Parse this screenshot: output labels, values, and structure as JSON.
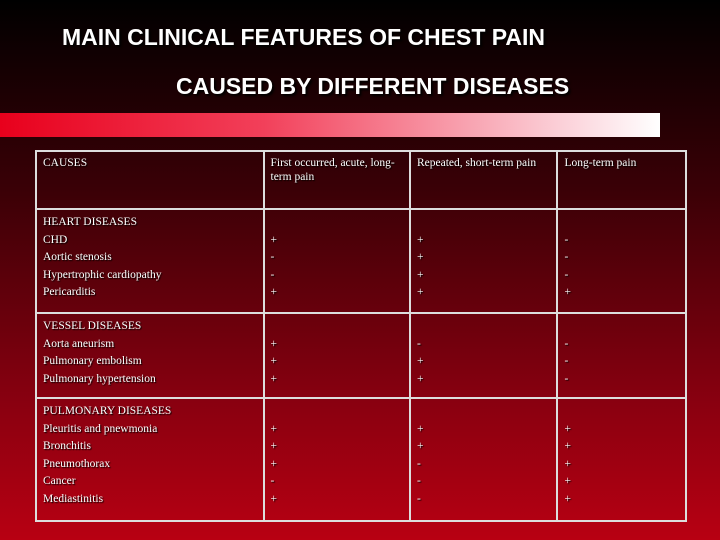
{
  "title": {
    "line1": "MAIN CLINICAL FEATURES OF CHEST PAIN",
    "line2": "CAUSED BY DIFFERENT DISEASES"
  },
  "table": {
    "header": [
      "CAUSES",
      "First occurred, acute, long-term pain",
      "Repeated, short-term pain",
      "Long-term pain"
    ],
    "groups": [
      {
        "title": "HEART DISEASES",
        "rows": [
          {
            "name": "CHD",
            "values": [
              "+",
              "+",
              "-"
            ]
          },
          {
            "name": "Aortic stenosis",
            "values": [
              "-",
              "+",
              "-"
            ]
          },
          {
            "name": "Hypertrophic cardiopathy",
            "values": [
              "-",
              "+",
              "-"
            ]
          },
          {
            "name": "Pericarditis",
            "values": [
              "+",
              "+",
              "+"
            ]
          }
        ]
      },
      {
        "title": "VESSEL DISEASES",
        "rows": [
          {
            "name": "Aorta aneurism",
            "values": [
              "+",
              "-",
              "-"
            ]
          },
          {
            "name": "Pulmonary embolism",
            "values": [
              "+",
              "+",
              "-"
            ]
          },
          {
            "name": "Pulmonary hypertension",
            "values": [
              "+",
              "+",
              "-"
            ]
          }
        ]
      },
      {
        "title": "PULMONARY DISEASES",
        "rows": [
          {
            "name": "Pleuritis and pnewmonia",
            "values": [
              "+",
              "+",
              "+"
            ]
          },
          {
            "name": "Bronchitis",
            "values": [
              "+",
              "+",
              "+"
            ]
          },
          {
            "name": "Pneumothorax",
            "values": [
              "+",
              "-",
              "+"
            ]
          },
          {
            "name": "Cancer",
            "values": [
              "-",
              "-",
              "+"
            ]
          },
          {
            "name": "Mediastinitis",
            "values": [
              "+",
              "-",
              "+"
            ]
          }
        ]
      }
    ]
  }
}
